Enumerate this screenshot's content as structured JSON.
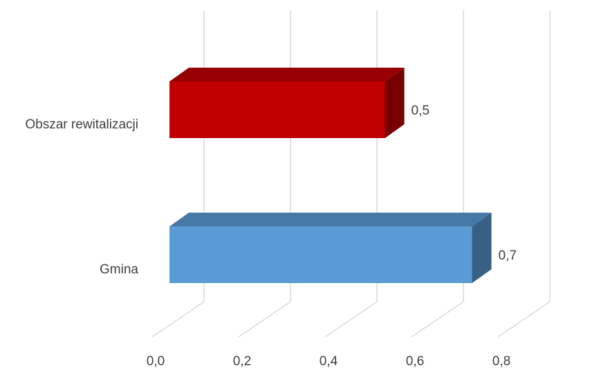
{
  "chart_data": {
    "type": "bar",
    "orientation": "horizontal",
    "style": "3d",
    "categories": [
      "Obszar rewitalizacji",
      "Gmina"
    ],
    "values": [
      0.5,
      0.7
    ],
    "value_labels": [
      "0,5",
      "0,7"
    ],
    "colors": [
      "#C00000",
      "#5B9BD5"
    ],
    "xlim": [
      0,
      0.8
    ],
    "ticks": [
      0,
      0.2,
      0.4,
      0.6,
      0.8
    ],
    "tick_labels": [
      "0,0",
      "0,2",
      "0,4",
      "0,6",
      "0,8"
    ],
    "grid": true,
    "legend": false
  }
}
